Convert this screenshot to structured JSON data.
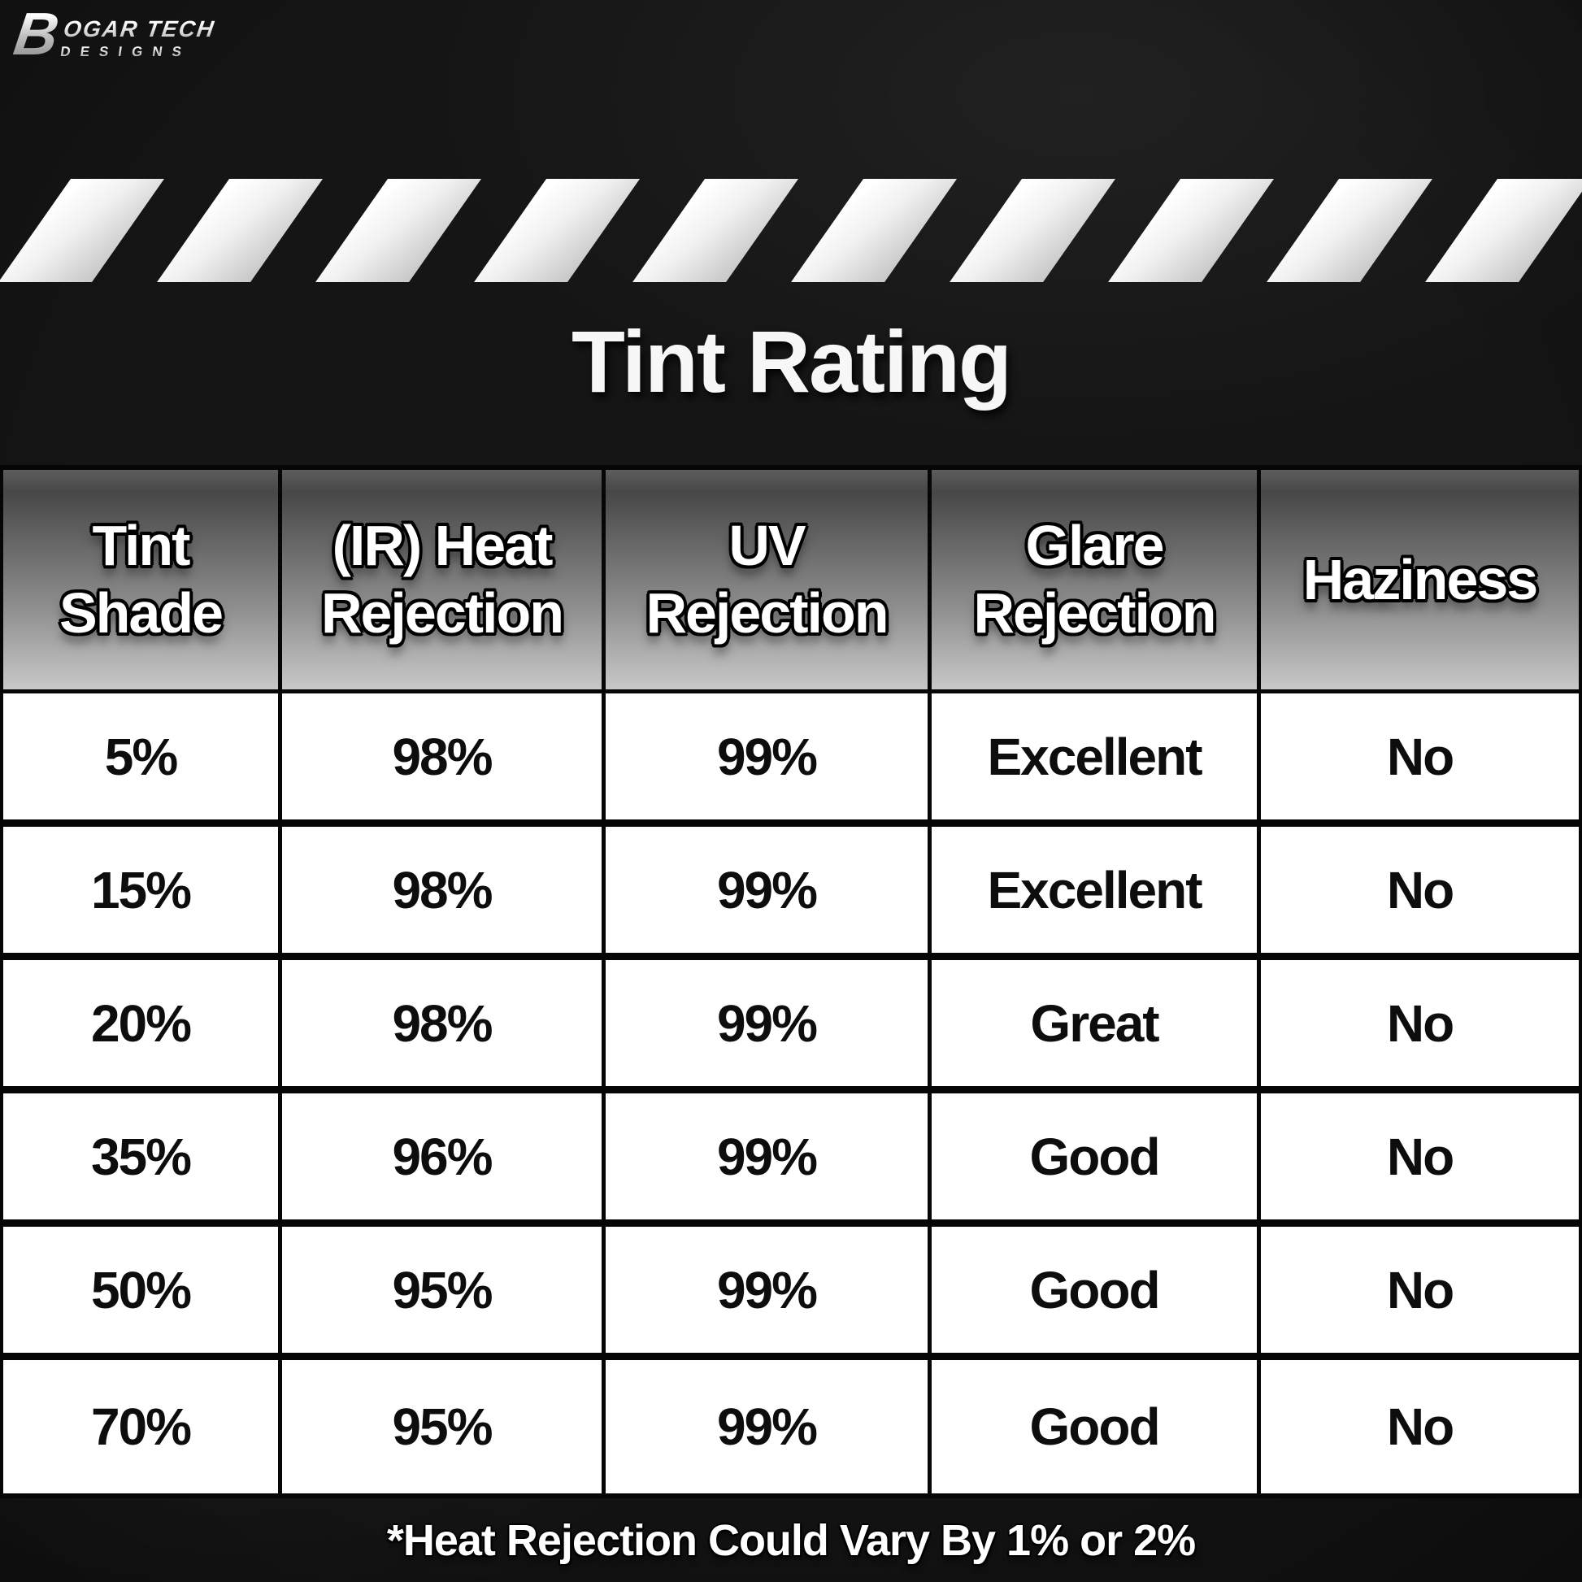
{
  "brand": {
    "initial": "B",
    "line1": "OGAR TECH",
    "line2": "DESIGNS"
  },
  "title": "Tint Rating",
  "chart_data": {
    "type": "table",
    "title": "Tint Rating",
    "columns": [
      "Tint Shade",
      "(IR) Heat Rejection",
      "UV Rejection",
      "Glare Rejection",
      "Haziness"
    ],
    "rows": [
      [
        "5%",
        "98%",
        "99%",
        "Excellent",
        "No"
      ],
      [
        "15%",
        "98%",
        "99%",
        "Excellent",
        "No"
      ],
      [
        "20%",
        "98%",
        "99%",
        "Great",
        "No"
      ],
      [
        "35%",
        "96%",
        "99%",
        "Good",
        "No"
      ],
      [
        "50%",
        "95%",
        "99%",
        "Good",
        "No"
      ],
      [
        "70%",
        "95%",
        "99%",
        "Good",
        "No"
      ]
    ],
    "footnote": "*Heat Rejection Could Vary By 1% or 2%"
  },
  "colors": {
    "background": "#151515",
    "table_lines": "#060606",
    "cell_background": "#ffffff",
    "header_gradient_top": "#4a4a4a",
    "header_gradient_bottom": "#c8c8c8",
    "stripe_light": "#ffffff",
    "stripe_dark": "#c7c7c7",
    "text_dark": "#0d0d0d",
    "text_light": "#ffffff"
  }
}
